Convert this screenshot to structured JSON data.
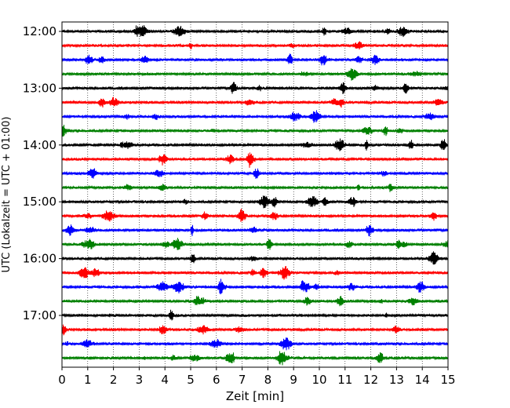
{
  "chart_data": {
    "type": "line",
    "subtype": "helicorder (seismogram drum plot)",
    "xlabel": "Zeit  [min]",
    "ylabel": "UTC (Lokalzeit = UTC + 01:00)",
    "xlim": [
      0,
      15
    ],
    "x_ticks": [
      "0",
      "1",
      "2",
      "3",
      "4",
      "5",
      "6",
      "7",
      "8",
      "9",
      "10",
      "11",
      "12",
      "13",
      "14",
      "15"
    ],
    "y_tick_labels": [
      "12:00",
      "13:00",
      "14:00",
      "15:00",
      "16:00",
      "17:00"
    ],
    "trace_interval_min": 15,
    "line_start_times": [
      "12:00",
      "12:15",
      "12:30",
      "12:45",
      "13:00",
      "13:15",
      "13:30",
      "13:45",
      "14:00",
      "14:15",
      "14:30",
      "14:45",
      "15:00",
      "15:15",
      "15:30",
      "15:45",
      "16:00",
      "16:15",
      "16:30",
      "16:45",
      "17:00",
      "17:15",
      "17:30",
      "17:45"
    ],
    "trace_colors": [
      "#000000",
      "#ff0000",
      "#0000ff",
      "#008000"
    ],
    "vertical_grid": "dotted, every minute",
    "grid": true
  }
}
